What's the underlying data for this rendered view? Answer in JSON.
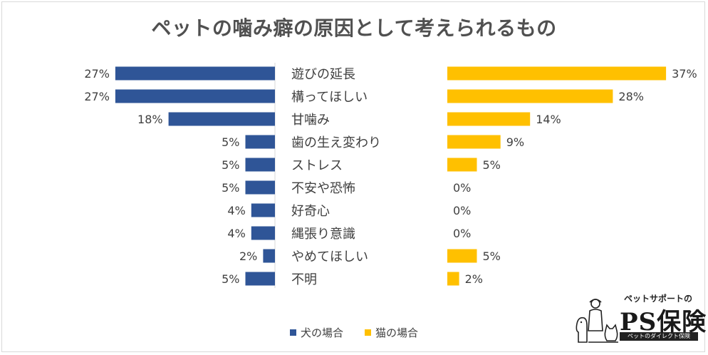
{
  "title": "ペットの噛み癖の原因として考えられるもの",
  "chart_data": {
    "type": "bar",
    "orientation": "horizontal-butterfly",
    "categories": [
      "遊びの延長",
      "構ってほしい",
      "甘噛み",
      "歯の生え変わり",
      "ストレス",
      "不安や恐怖",
      "好奇心",
      "縄張り意識",
      "やめてほしい",
      "不明"
    ],
    "series": [
      {
        "name": "犬の場合",
        "color": "#2f5597",
        "values": [
          27,
          27,
          18,
          5,
          5,
          5,
          4,
          4,
          2,
          5
        ]
      },
      {
        "name": "猫の場合",
        "color": "#ffc000",
        "values": [
          37,
          28,
          14,
          9,
          5,
          0,
          0,
          0,
          5,
          2
        ]
      }
    ],
    "unit": "%",
    "grid": false,
    "legend_position": "bottom"
  },
  "logo": {
    "tagline": "ペットサポートの",
    "name": "PS保険",
    "subline": "ペットのダイレクト保険"
  }
}
